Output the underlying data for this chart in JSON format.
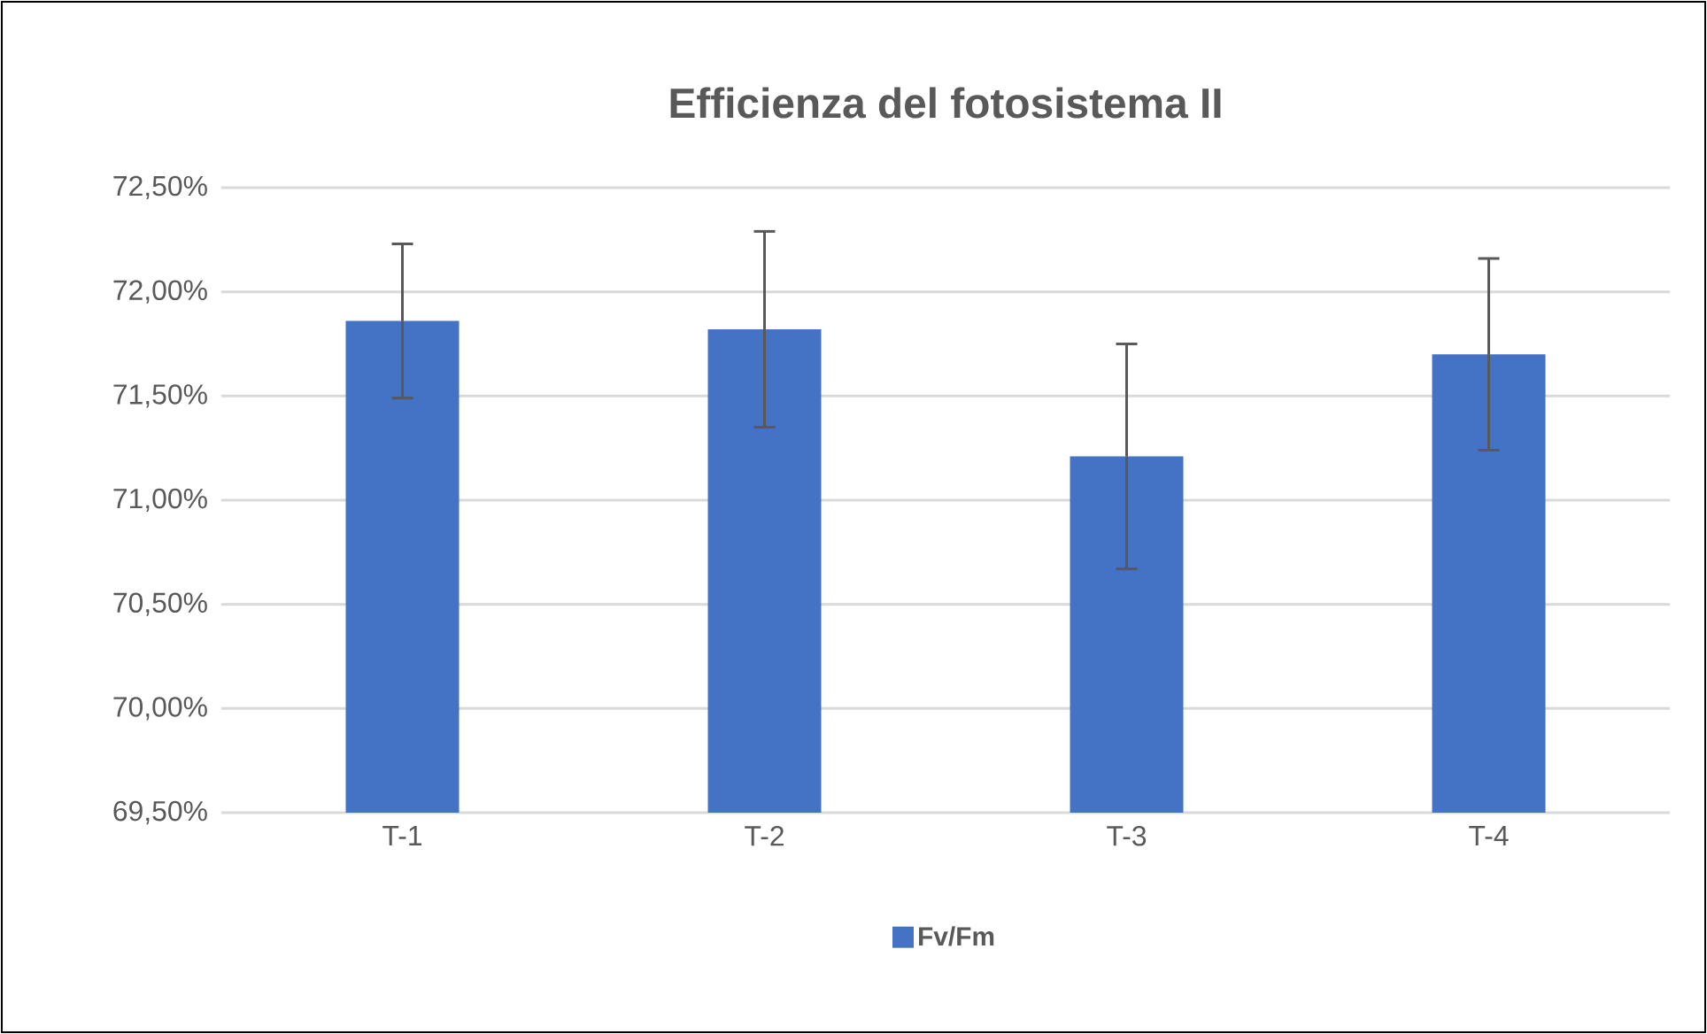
{
  "chart_data": {
    "type": "bar",
    "title": "Efficienza del fotosistema II",
    "categories": [
      "T-1",
      "T-2",
      "T-3",
      "T-4"
    ],
    "series": [
      {
        "name": "Fv/Fm",
        "color": "#4472c4",
        "values": [
          71.86,
          71.82,
          71.21,
          71.7
        ],
        "errors": [
          0.37,
          0.47,
          0.54,
          0.46
        ]
      }
    ],
    "ylim": [
      69.5,
      72.5
    ],
    "yticks": [
      {
        "value": 69.5,
        "label": "69,50%"
      },
      {
        "value": 70.0,
        "label": "70,00%"
      },
      {
        "value": 70.5,
        "label": "70,50%"
      },
      {
        "value": 71.0,
        "label": "71,00%"
      },
      {
        "value": 71.5,
        "label": "71,50%"
      },
      {
        "value": 72.0,
        "label": "72,00%"
      },
      {
        "value": 72.5,
        "label": "72,50%"
      }
    ],
    "grid": "y",
    "legend": "bottom"
  }
}
